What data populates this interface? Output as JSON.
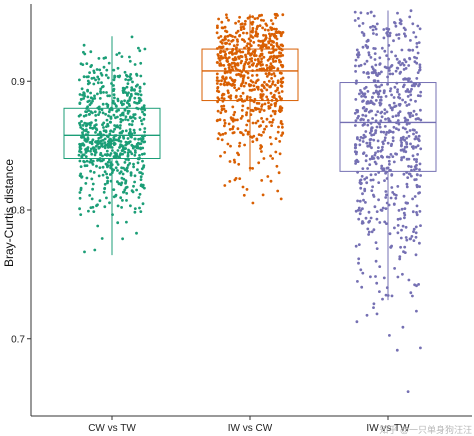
{
  "chart_data": {
    "type": "box+jitter",
    "title": "",
    "xlabel": "",
    "ylabel": "Bray-Curtis distance",
    "ylim": [
      0.64,
      0.96
    ],
    "yticks": [
      0.7,
      0.8,
      0.9
    ],
    "ytick_labels": [
      "0.7",
      "0.8",
      "0.9"
    ],
    "grid": false,
    "legend": "none",
    "categories": [
      "CW vs TW",
      "IW vs CW",
      "IW vs TW"
    ],
    "series": [
      {
        "color": "#1b9e77",
        "box": {
          "q1": 0.84,
          "median": 0.858,
          "q3": 0.879,
          "whisker_low": 0.765,
          "whisker_high": 0.935
        },
        "points_range": [
          0.755,
          0.938
        ],
        "n_points": 700
      },
      {
        "color": "#d95f02",
        "box": {
          "q1": 0.885,
          "median": 0.908,
          "q3": 0.925,
          "whisker_low": 0.83,
          "whisker_high": 0.952
        },
        "points_range": [
          0.798,
          0.952
        ],
        "n_points": 700
      },
      {
        "color": "#7570b3",
        "box": {
          "q1": 0.83,
          "median": 0.868,
          "q3": 0.899,
          "whisker_low": 0.73,
          "whisker_high": 0.955
        },
        "points_range": [
          0.65,
          0.955
        ],
        "n_points": 700
      }
    ]
  },
  "watermark": "知乎 @一只单身狗汪汪"
}
